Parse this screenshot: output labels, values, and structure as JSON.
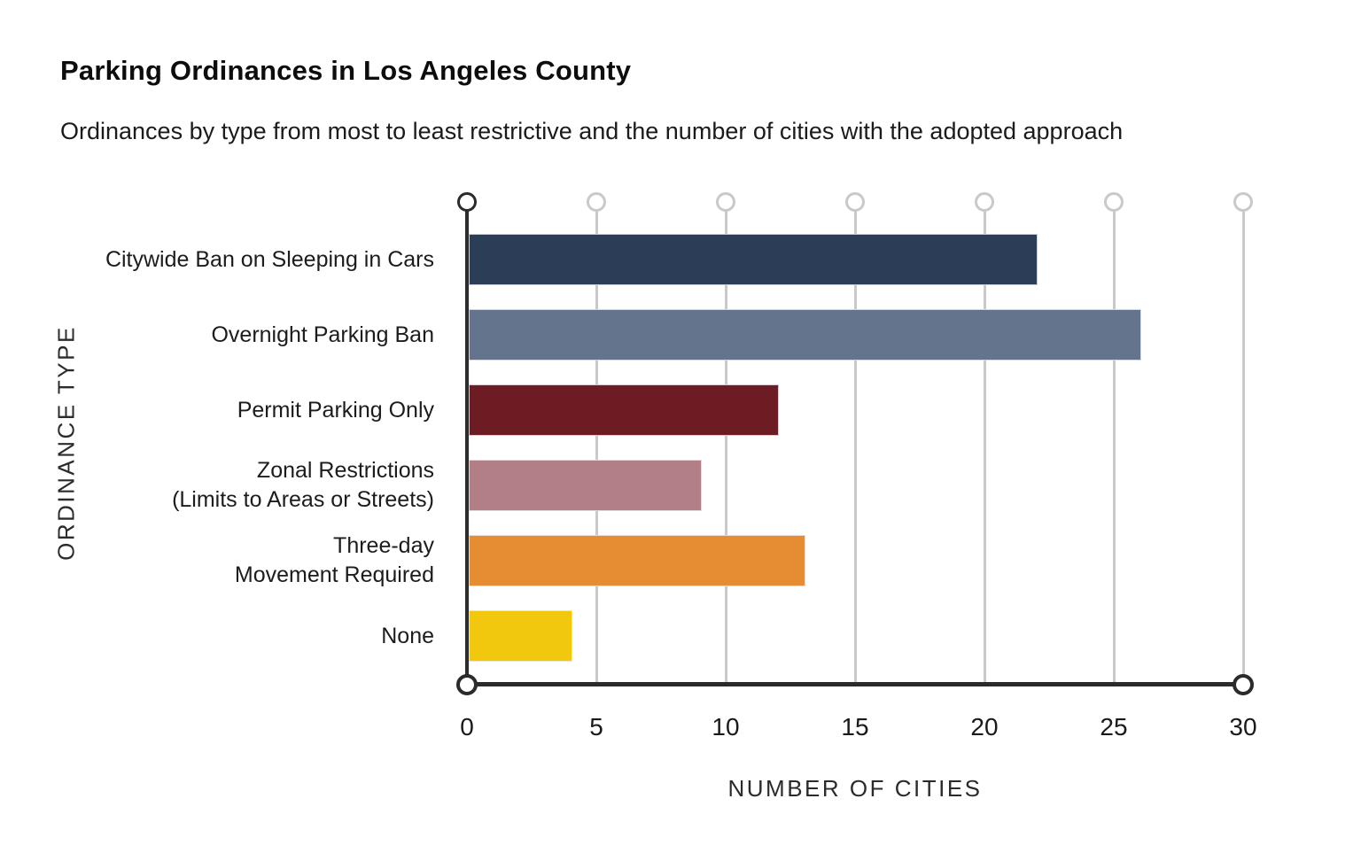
{
  "page": {
    "title": "Parking Ordinances in Los Angeles County",
    "subtitle": "Ordinances by type from most to least restrictive and the number of cities with the adopted approach"
  },
  "chart_data": {
    "type": "bar",
    "orientation": "horizontal",
    "title": "Parking Ordinances in Los Angeles County",
    "subtitle": "Ordinances by type from most to least restrictive and the number of cities with the adopted approach",
    "xlabel": "NUMBER OF CITIES",
    "ylabel": "ORDINANCE TYPE",
    "xlim": [
      0,
      30
    ],
    "x_ticks": [
      0,
      5,
      10,
      15,
      20,
      25,
      30
    ],
    "grid": "vertical gridlines with open-circle lollipop tops; zero line and axis in dark ink",
    "legend": "none",
    "categories": [
      "Citywide Ban on Sleeping in Cars",
      "Overnight Parking Ban",
      "Permit Parking Only",
      "Zonal Restrictions (Limits to Areas or Streets)",
      "Three-day Movement Required",
      "None"
    ],
    "category_label_lines": [
      [
        "Citywide Ban on Sleeping in Cars"
      ],
      [
        "Overnight Parking Ban"
      ],
      [
        "Permit Parking Only"
      ],
      [
        "Zonal Restrictions",
        "(Limits to Areas or Streets)"
      ],
      [
        "Three-day",
        "Movement Required"
      ],
      [
        "None"
      ]
    ],
    "values": [
      22,
      26,
      12,
      9,
      13,
      4
    ],
    "bar_colors": [
      "#2C3E57",
      "#64748C",
      "#6E1C24",
      "#B27F86",
      "#E68C33",
      "#F2C80F"
    ],
    "colors": {
      "gridline": "#C9C9C9",
      "axis": "#2B2B2B",
      "text": "#1A1A1A",
      "background": "#FFFFFF"
    }
  }
}
